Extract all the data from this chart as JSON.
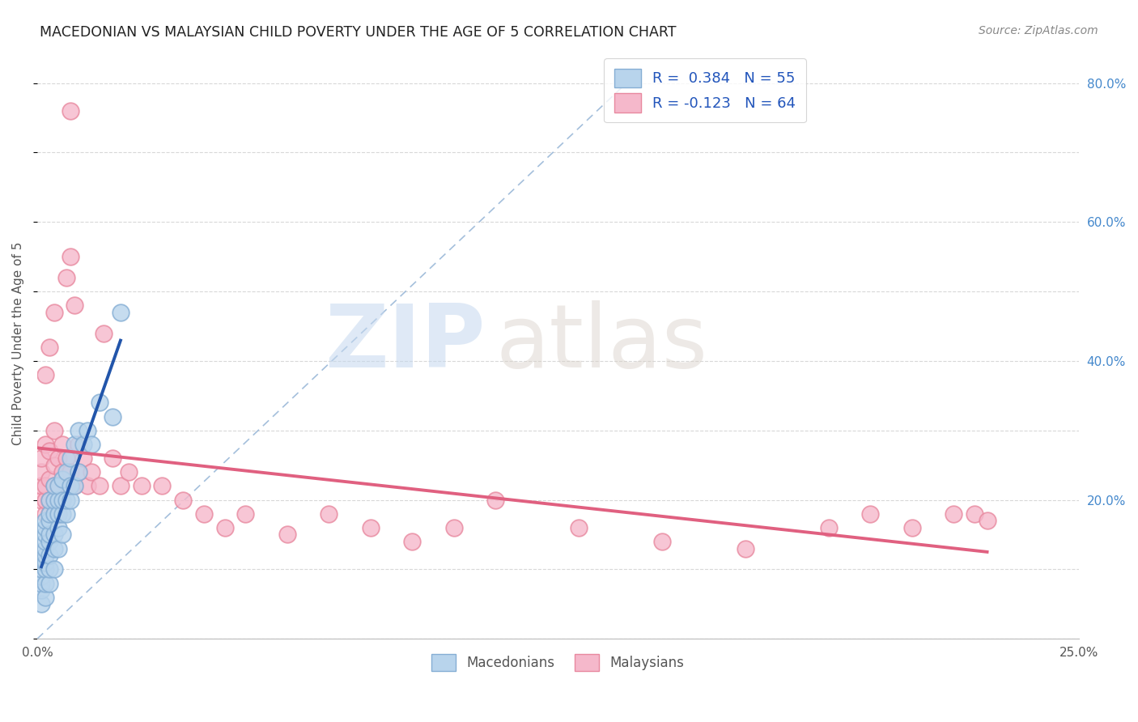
{
  "title": "MACEDONIAN VS MALAYSIAN CHILD POVERTY UNDER THE AGE OF 5 CORRELATION CHART",
  "source": "Source: ZipAtlas.com",
  "ylabel": "Child Poverty Under the Age of 5",
  "xlim": [
    0,
    0.25
  ],
  "ylim": [
    0,
    0.85
  ],
  "macedonian_color": "#b8d4ec",
  "malaysian_color": "#f5b8cb",
  "macedonian_edge": "#85aed4",
  "malaysian_edge": "#e8899f",
  "blue_line_color": "#2255aa",
  "pink_line_color": "#e06080",
  "diag_line_color": "#9ab8d8",
  "R_macedonian": "0.384",
  "N_macedonian": "55",
  "R_malaysian": "-0.123",
  "N_malaysian": "64",
  "watermark_zip": "ZIP",
  "watermark_atlas": "atlas",
  "background_color": "#ffffff",
  "grid_color": "#d8d8d8",
  "macedonian_x": [
    0.001,
    0.001,
    0.001,
    0.001,
    0.001,
    0.001,
    0.002,
    0.002,
    0.002,
    0.002,
    0.002,
    0.002,
    0.002,
    0.002,
    0.002,
    0.002,
    0.003,
    0.003,
    0.003,
    0.003,
    0.003,
    0.003,
    0.003,
    0.003,
    0.004,
    0.004,
    0.004,
    0.004,
    0.004,
    0.004,
    0.005,
    0.005,
    0.005,
    0.005,
    0.005,
    0.006,
    0.006,
    0.006,
    0.006,
    0.007,
    0.007,
    0.007,
    0.008,
    0.008,
    0.008,
    0.009,
    0.009,
    0.01,
    0.01,
    0.011,
    0.012,
    0.013,
    0.015,
    0.018,
    0.02
  ],
  "macedonian_y": [
    0.05,
    0.07,
    0.08,
    0.09,
    0.1,
    0.11,
    0.06,
    0.08,
    0.1,
    0.11,
    0.12,
    0.13,
    0.14,
    0.15,
    0.16,
    0.17,
    0.08,
    0.1,
    0.12,
    0.14,
    0.15,
    0.17,
    0.18,
    0.2,
    0.1,
    0.13,
    0.15,
    0.18,
    0.2,
    0.22,
    0.13,
    0.16,
    0.18,
    0.2,
    0.22,
    0.15,
    0.18,
    0.2,
    0.23,
    0.18,
    0.2,
    0.24,
    0.2,
    0.22,
    0.26,
    0.22,
    0.28,
    0.24,
    0.3,
    0.28,
    0.3,
    0.28,
    0.34,
    0.32,
    0.47
  ],
  "malaysian_x": [
    0.001,
    0.001,
    0.001,
    0.001,
    0.002,
    0.002,
    0.002,
    0.002,
    0.003,
    0.003,
    0.003,
    0.003,
    0.004,
    0.004,
    0.004,
    0.004,
    0.005,
    0.005,
    0.005,
    0.006,
    0.006,
    0.006,
    0.007,
    0.007,
    0.007,
    0.008,
    0.008,
    0.009,
    0.009,
    0.01,
    0.01,
    0.011,
    0.012,
    0.013,
    0.015,
    0.016,
    0.018,
    0.02,
    0.022,
    0.025,
    0.03,
    0.035,
    0.04,
    0.045,
    0.05,
    0.06,
    0.07,
    0.08,
    0.09,
    0.1,
    0.11,
    0.13,
    0.15,
    0.17,
    0.19,
    0.2,
    0.21,
    0.22,
    0.225,
    0.228,
    0.002,
    0.003,
    0.004,
    0.008
  ],
  "malaysian_y": [
    0.2,
    0.22,
    0.24,
    0.26,
    0.18,
    0.2,
    0.22,
    0.28,
    0.18,
    0.2,
    0.23,
    0.27,
    0.2,
    0.22,
    0.25,
    0.3,
    0.18,
    0.22,
    0.26,
    0.2,
    0.24,
    0.28,
    0.22,
    0.26,
    0.52,
    0.24,
    0.55,
    0.22,
    0.48,
    0.24,
    0.28,
    0.26,
    0.22,
    0.24,
    0.22,
    0.44,
    0.26,
    0.22,
    0.24,
    0.22,
    0.22,
    0.2,
    0.18,
    0.16,
    0.18,
    0.15,
    0.18,
    0.16,
    0.14,
    0.16,
    0.2,
    0.16,
    0.14,
    0.13,
    0.16,
    0.18,
    0.16,
    0.18,
    0.18,
    0.17,
    0.38,
    0.42,
    0.47,
    0.76
  ]
}
